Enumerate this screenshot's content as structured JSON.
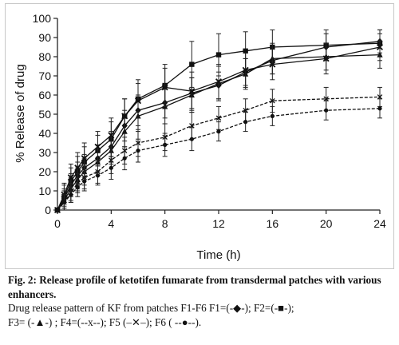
{
  "chart_data": {
    "type": "line",
    "xlabel": "Time (h)",
    "ylabel": "% Release of drug",
    "xlim": [
      0,
      24
    ],
    "ylim": [
      0,
      100
    ],
    "xticks": [
      0,
      4,
      8,
      12,
      16,
      20,
      24
    ],
    "yticks": [
      0,
      10,
      20,
      30,
      40,
      50,
      60,
      70,
      80,
      90,
      100
    ],
    "grid": false,
    "legend": "none",
    "x": [
      0,
      0.5,
      1,
      1.5,
      2,
      3,
      4,
      5,
      6,
      8,
      10,
      12,
      14,
      16,
      20,
      24
    ],
    "series": [
      {
        "marker": "diamond",
        "dash": "solid",
        "values": [
          0,
          6,
          13,
          18,
          22,
          27,
          33,
          44,
          52,
          56,
          61,
          65,
          72,
          78,
          85,
          88
        ],
        "errors": [
          0,
          5,
          6,
          7,
          7,
          7,
          8,
          8,
          8,
          8,
          8,
          7,
          7,
          7,
          7,
          6
        ]
      },
      {
        "marker": "square",
        "dash": "solid",
        "values": [
          0,
          7,
          15,
          20,
          25,
          31,
          37,
          49,
          58,
          65,
          76,
          81,
          83,
          85,
          86,
          87
        ],
        "errors": [
          0,
          6,
          7,
          8,
          8,
          8,
          9,
          9,
          10,
          11,
          12,
          11,
          10,
          9,
          8,
          7
        ]
      },
      {
        "marker": "triangle",
        "dash": "solid",
        "values": [
          0,
          5,
          11,
          16,
          20,
          25,
          31,
          41,
          49,
          54,
          60,
          66,
          71,
          79,
          80,
          81
        ],
        "errors": [
          0,
          5,
          6,
          6,
          7,
          7,
          7,
          8,
          8,
          9,
          9,
          9,
          8,
          8,
          7,
          7
        ]
      },
      {
        "marker": "x",
        "dash": "dashed",
        "values": [
          0,
          4,
          9,
          14,
          17,
          20,
          26,
          31,
          35,
          38,
          44,
          48,
          52,
          57,
          58,
          59
        ],
        "errors": [
          0,
          4,
          5,
          5,
          6,
          6,
          7,
          7,
          7,
          7,
          7,
          6,
          6,
          6,
          6,
          5
        ]
      },
      {
        "marker": "cross",
        "dash": "solid",
        "values": [
          0,
          8,
          17,
          22,
          27,
          33,
          39,
          49,
          57,
          64,
          62,
          67,
          73,
          76,
          79,
          85
        ],
        "errors": [
          0,
          6,
          7,
          8,
          8,
          8,
          9,
          9,
          9,
          10,
          10,
          9,
          9,
          8,
          8,
          7
        ]
      },
      {
        "marker": "circle",
        "dash": "dashed",
        "values": [
          0,
          4,
          8,
          12,
          15,
          18,
          22,
          27,
          31,
          34,
          37,
          41,
          46,
          49,
          52,
          53
        ],
        "errors": [
          0,
          4,
          4,
          5,
          5,
          5,
          6,
          6,
          6,
          6,
          6,
          5,
          5,
          5,
          5,
          5
        ]
      }
    ]
  },
  "caption": {
    "bold_text": "Fig. 2: Release profile of ketotifen fumarate from transdermal patches with various enhancers.",
    "line3": "Drug release pattern of KF from patches F1-F6 F1=(-◆-); F2=(-■-);",
    "line4": "F3= (-▲-) ; F4=(--x--);  F5 (–✕–);  F6 ( --●--)."
  }
}
